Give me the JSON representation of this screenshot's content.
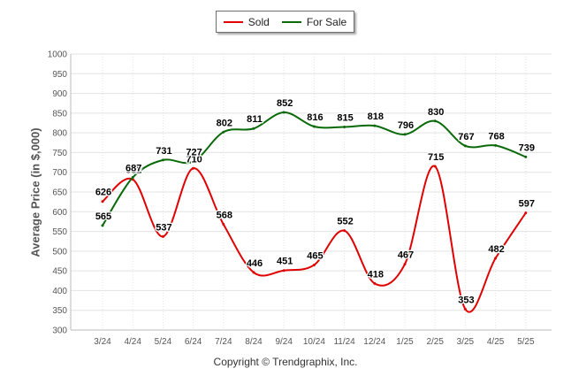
{
  "chart_data": {
    "type": "line",
    "categories": [
      "3/24",
      "4/24",
      "5/24",
      "6/24",
      "7/24",
      "8/24",
      "9/24",
      "10/24",
      "11/24",
      "12/24",
      "1/25",
      "2/25",
      "3/25",
      "4/25",
      "5/25"
    ],
    "series": [
      {
        "name": "Sold",
        "color": "#e00000",
        "values": [
          626,
          682,
          537,
          710,
          568,
          446,
          451,
          465,
          552,
          418,
          467,
          715,
          353,
          482,
          597
        ]
      },
      {
        "name": "For Sale",
        "color": "#0a6a0a",
        "values": [
          565,
          687,
          731,
          727,
          802,
          811,
          852,
          816,
          815,
          818,
          796,
          830,
          767,
          768,
          739
        ]
      }
    ],
    "ylabel": "Average Price (in $,000)",
    "xlabel": "",
    "ylim": [
      300,
      1000
    ],
    "yticks": [
      300,
      350,
      400,
      450,
      500,
      550,
      600,
      650,
      700,
      750,
      800,
      850,
      900,
      950,
      1000
    ],
    "grid": true,
    "legend_position": "top-center"
  },
  "copyright": "Copyright © Trendgraphix, Inc."
}
